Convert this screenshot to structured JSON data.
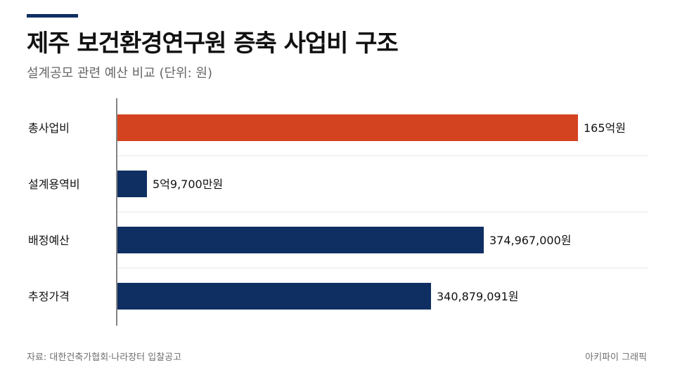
{
  "header": {
    "title": "제주 보건환경연구원 증축 사업비 구조",
    "subtitle": "설계공모 관련 예산 비교 (단위: 원)"
  },
  "footer": {
    "source": "자료: 대한건축가협회·나라장터 입찰공고",
    "brand": "아키파이 그래픽"
  },
  "colors": {
    "highlight": "#d3431f",
    "primary": "#0f2f63",
    "accent_bar": "#0f2f63"
  },
  "chart_data": {
    "type": "bar",
    "orientation": "horizontal",
    "categories": [
      "총사업비",
      "설계용역비",
      "배정예산",
      "추정가격"
    ],
    "values": [
      16500000000,
      597000000,
      374967000,
      340879091
    ],
    "value_labels": [
      "165억원",
      "5억9,700만원",
      "374,967,000원",
      "340,879,091원"
    ],
    "bar_colors": [
      "#d3431f",
      "#0f2f63",
      "#0f2f63",
      "#0f2f63"
    ],
    "grid": true,
    "legend": "none"
  }
}
